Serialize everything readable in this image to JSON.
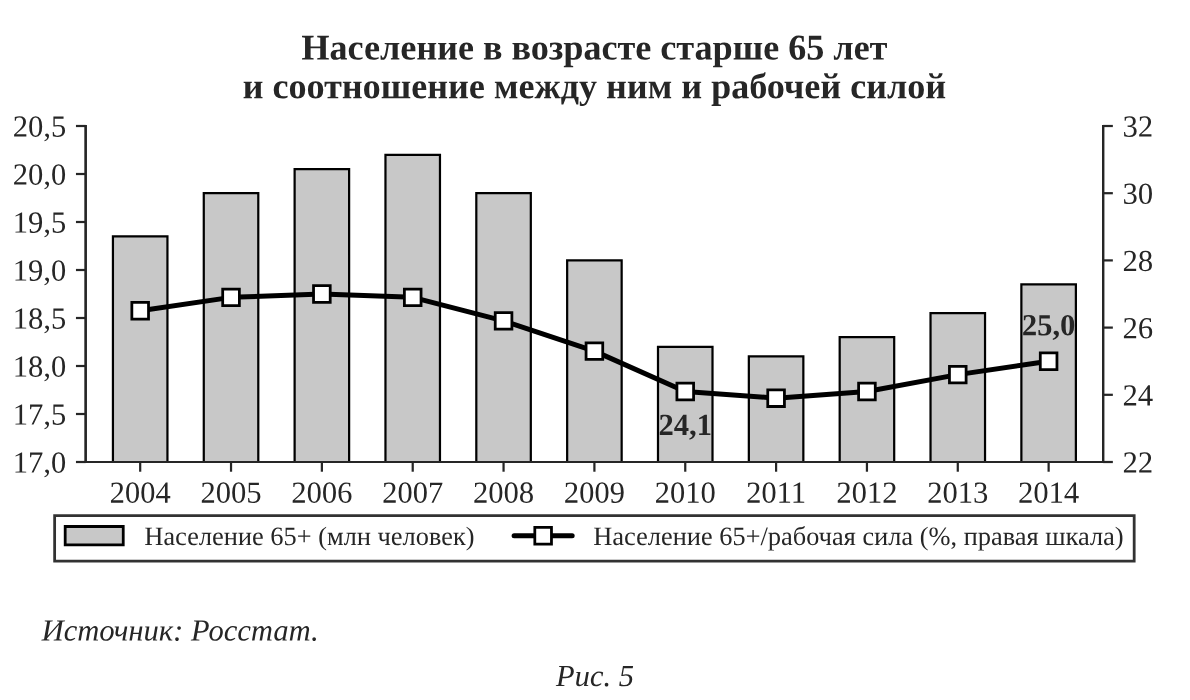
{
  "chart_data": {
    "type": "bar",
    "title": "Население в возрасте старше 65 лет\nи соотношение между ним и рабочей силой",
    "categories": [
      "2004",
      "2005",
      "2006",
      "2007",
      "2008",
      "2009",
      "2010",
      "2011",
      "2012",
      "2013",
      "2014"
    ],
    "series": [
      {
        "name": "Население 65+ (млн человек)",
        "color": "#c8c8c8",
        "values": [
          19.35,
          19.8,
          20.05,
          20.2,
          19.8,
          19.1,
          18.2,
          18.1,
          18.3,
          18.55,
          18.85
        ]
      },
      {
        "name": "Население 65+/рабочая сила (%, правая шкала)",
        "type": "line",
        "axis": "y2",
        "color": "#000000",
        "marker": "square",
        "values": [
          26.5,
          26.9,
          27.0,
          26.9,
          26.2,
          25.3,
          24.1,
          23.9,
          24.1,
          24.6,
          25.0
        ],
        "value_labels": [
          null,
          null,
          null,
          null,
          null,
          null,
          "24,1",
          null,
          null,
          null,
          "25,0"
        ]
      }
    ],
    "ylim": [
      17.0,
      20.5
    ],
    "yticks": [
      {
        "value": 17.0,
        "label": "17,0"
      },
      {
        "value": 17.5,
        "label": "17,5"
      },
      {
        "value": 18.0,
        "label": "18,0"
      },
      {
        "value": 18.5,
        "label": "18,5"
      },
      {
        "value": 19.0,
        "label": "19,0"
      },
      {
        "value": 19.5,
        "label": "19,5"
      },
      {
        "value": 20.0,
        "label": "20,0"
      },
      {
        "value": 20.5,
        "label": "20,5"
      }
    ],
    "y2lim": [
      22,
      32
    ],
    "y2ticks": [
      22,
      24,
      26,
      28,
      30,
      32
    ],
    "legend": "bottom",
    "grid": false,
    "annotations": [
      "Источник: Росстат.",
      "Рис. 5"
    ]
  }
}
